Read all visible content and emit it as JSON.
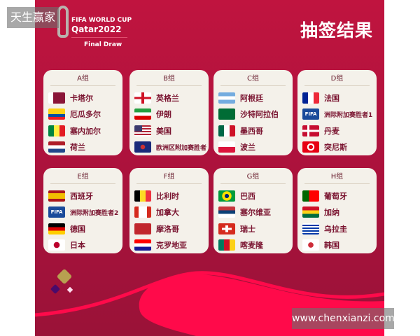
{
  "watermark_top": "天生赢家",
  "watermark_bottom": "www.chenxianzi.com",
  "logo": {
    "line1": "FIFA WORLD CUP",
    "line2": "Qatar2022",
    "line3": "Final Draw"
  },
  "title": "抽签结果",
  "colors": {
    "background": "#b3133e",
    "card": "#f4f1ea",
    "team_text": "#7a1430",
    "accent_wave": "#ff0a4a"
  },
  "groups": [
    {
      "name": "A组",
      "teams": [
        {
          "name": "卡塔尔",
          "flag": "qatar"
        },
        {
          "name": "厄瓜多尔",
          "flag": "ecuador"
        },
        {
          "name": "塞内加尔",
          "flag": "senegal"
        },
        {
          "name": "荷兰",
          "flag": "netherlands"
        }
      ]
    },
    {
      "name": "B组",
      "teams": [
        {
          "name": "英格兰",
          "flag": "england"
        },
        {
          "name": "伊朗",
          "flag": "iran"
        },
        {
          "name": "美国",
          "flag": "usa"
        },
        {
          "name": "欧洲区附加赛胜者",
          "flag": "uefa"
        }
      ]
    },
    {
      "name": "C组",
      "teams": [
        {
          "name": "阿根廷",
          "flag": "argentina"
        },
        {
          "name": "沙特阿拉伯",
          "flag": "saudi"
        },
        {
          "name": "墨西哥",
          "flag": "mexico"
        },
        {
          "name": "波兰",
          "flag": "poland"
        }
      ]
    },
    {
      "name": "D组",
      "teams": [
        {
          "name": "法国",
          "flag": "france"
        },
        {
          "name": "洲际附加赛胜者1",
          "flag": "fifa",
          "flag_text": "FIFA"
        },
        {
          "name": "丹麦",
          "flag": "denmark"
        },
        {
          "name": "突尼斯",
          "flag": "tunisia"
        }
      ]
    },
    {
      "name": "E组",
      "teams": [
        {
          "name": "西班牙",
          "flag": "spain"
        },
        {
          "name": "洲际附加赛胜者2",
          "flag": "fifa",
          "flag_text": "FIFA"
        },
        {
          "name": "德国",
          "flag": "germany"
        },
        {
          "name": "日本",
          "flag": "japan"
        }
      ]
    },
    {
      "name": "F组",
      "teams": [
        {
          "name": "比利时",
          "flag": "belgium"
        },
        {
          "name": "加拿大",
          "flag": "canada"
        },
        {
          "name": "摩洛哥",
          "flag": "morocco"
        },
        {
          "name": "克罗地亚",
          "flag": "croatia"
        }
      ]
    },
    {
      "name": "G组",
      "teams": [
        {
          "name": "巴西",
          "flag": "brazil"
        },
        {
          "name": "塞尔维亚",
          "flag": "serbia"
        },
        {
          "name": "瑞士",
          "flag": "switzerland"
        },
        {
          "name": "喀麦隆",
          "flag": "cameroon"
        }
      ]
    },
    {
      "name": "H组",
      "teams": [
        {
          "name": "葡萄牙",
          "flag": "portugal"
        },
        {
          "name": "加纳",
          "flag": "ghana"
        },
        {
          "name": "乌拉圭",
          "flag": "uruguay"
        },
        {
          "name": "韩国",
          "flag": "korea"
        }
      ]
    }
  ]
}
